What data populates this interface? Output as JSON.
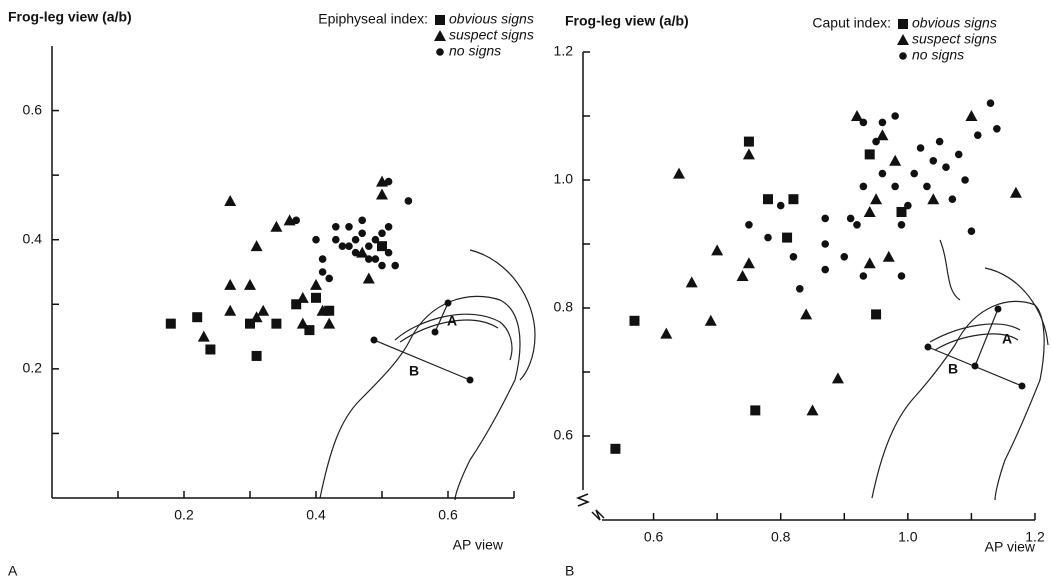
{
  "chart_data": [
    {
      "type": "scatter",
      "y_label": "Frog-leg view (a/b)",
      "x_label": "AP view",
      "panel_label": "A",
      "legend_title": "Epiphyseal index:",
      "inset_labels": [
        "A",
        "B"
      ],
      "xlim": [
        0,
        0.7
      ],
      "ylim": [
        0,
        0.7
      ],
      "xticks": [
        {
          "value": 0.1,
          "label": null
        },
        0.2,
        {
          "value": 0.3,
          "label": null
        },
        0.4,
        {
          "value": 0.5,
          "label": null
        },
        0.6,
        {
          "value": 0.7,
          "label": null
        }
      ],
      "yticks": [
        {
          "value": 0.1,
          "label": null
        },
        0.2,
        {
          "value": 0.3,
          "label": null
        },
        0.4,
        {
          "value": 0.5,
          "label": null
        },
        0.6
      ],
      "series": [
        {
          "name": "obvious signs",
          "marker": "square",
          "color": "#111111",
          "x": [
            0.18,
            0.22,
            0.24,
            0.3,
            0.31,
            0.34,
            0.37,
            0.39,
            0.4,
            0.42,
            0.5
          ],
          "y": [
            0.27,
            0.28,
            0.23,
            0.27,
            0.22,
            0.27,
            0.3,
            0.26,
            0.31,
            0.29,
            0.39
          ]
        },
        {
          "name": "suspect signs",
          "marker": "triangle",
          "color": "#111111",
          "x": [
            0.23,
            0.27,
            0.3,
            0.27,
            0.31,
            0.32,
            0.27,
            0.31,
            0.34,
            0.36,
            0.38,
            0.38,
            0.4,
            0.42,
            0.41,
            0.48,
            0.47,
            0.5,
            0.5
          ],
          "y": [
            0.25,
            0.33,
            0.33,
            0.29,
            0.28,
            0.29,
            0.46,
            0.39,
            0.42,
            0.43,
            0.31,
            0.27,
            0.33,
            0.27,
            0.29,
            0.34,
            0.38,
            0.49,
            0.47
          ]
        },
        {
          "name": "no signs",
          "marker": "circle",
          "color": "#111111",
          "x": [
            0.37,
            0.4,
            0.41,
            0.41,
            0.43,
            0.43,
            0.44,
            0.45,
            0.45,
            0.46,
            0.46,
            0.47,
            0.47,
            0.48,
            0.48,
            0.49,
            0.49,
            0.5,
            0.5,
            0.51,
            0.51,
            0.52,
            0.51,
            0.54,
            0.42
          ],
          "y": [
            0.43,
            0.4,
            0.37,
            0.35,
            0.42,
            0.4,
            0.39,
            0.42,
            0.39,
            0.38,
            0.4,
            0.41,
            0.43,
            0.39,
            0.37,
            0.4,
            0.37,
            0.41,
            0.36,
            0.42,
            0.38,
            0.36,
            0.49,
            0.46,
            0.34
          ]
        }
      ]
    },
    {
      "type": "scatter",
      "y_label": "Frog-leg view (a/b)",
      "x_label": "AP view",
      "panel_label": "B",
      "legend_title": "Caput index:",
      "inset_labels": [
        "A",
        "B"
      ],
      "xlim": [
        0.5,
        1.2
      ],
      "ylim": [
        0.5,
        1.2
      ],
      "xticks": [
        0.6,
        {
          "value": 0.7,
          "label": null
        },
        0.8,
        {
          "value": 0.9,
          "label": null
        },
        {
          "value": 1.0,
          "label": "1.0"
        },
        {
          "value": 1.1,
          "label": null
        },
        1.2
      ],
      "yticks": [
        0.6,
        {
          "value": 0.7,
          "label": null
        },
        0.8,
        {
          "value": 0.9,
          "label": null
        },
        {
          "value": 1.0,
          "label": "1.0"
        },
        {
          "value": 1.1,
          "label": null
        },
        1.2
      ],
      "series": [
        {
          "name": "obvious signs",
          "marker": "square",
          "color": "#111111",
          "x": [
            0.75,
            0.78,
            0.82,
            0.81,
            0.94,
            0.99,
            0.57,
            0.95,
            0.76,
            0.54
          ],
          "y": [
            1.06,
            0.97,
            0.97,
            0.91,
            1.04,
            0.95,
            0.78,
            0.79,
            0.64,
            0.58
          ]
        },
        {
          "name": "suspect signs",
          "marker": "triangle",
          "color": "#111111",
          "x": [
            0.64,
            0.75,
            0.7,
            0.66,
            0.62,
            0.69,
            0.74,
            0.75,
            0.84,
            0.85,
            0.89,
            0.94,
            0.97,
            0.92,
            0.94,
            0.96,
            0.98,
            1.1,
            1.17,
            0.95,
            1.04
          ],
          "y": [
            1.01,
            1.04,
            0.89,
            0.84,
            0.76,
            0.78,
            0.85,
            0.87,
            0.79,
            0.64,
            0.69,
            0.87,
            0.88,
            1.1,
            0.95,
            1.07,
            1.03,
            1.1,
            0.98,
            0.97,
            0.97
          ]
        },
        {
          "name": "no signs",
          "marker": "circle",
          "color": "#111111",
          "x": [
            0.75,
            0.8,
            0.78,
            0.82,
            0.83,
            0.87,
            0.87,
            0.87,
            0.9,
            0.91,
            0.93,
            0.93,
            0.95,
            0.96,
            0.98,
            0.99,
            0.99,
            1.0,
            1.01,
            1.02,
            1.03,
            1.04,
            1.05,
            1.06,
            1.07,
            1.08,
            1.09,
            1.1,
            1.11,
            1.13,
            1.14,
            0.96,
            0.98,
            0.92,
            0.93
          ],
          "y": [
            0.93,
            0.96,
            0.91,
            0.88,
            0.83,
            0.94,
            0.9,
            0.86,
            0.88,
            0.94,
            0.85,
            1.09,
            1.06,
            1.09,
            1.1,
            0.85,
            0.93,
            0.96,
            1.01,
            1.05,
            0.99,
            1.03,
            1.06,
            1.02,
            0.97,
            1.04,
            1.0,
            0.92,
            1.07,
            1.12,
            1.08,
            1.01,
            0.99,
            0.93,
            0.99
          ]
        }
      ]
    }
  ]
}
